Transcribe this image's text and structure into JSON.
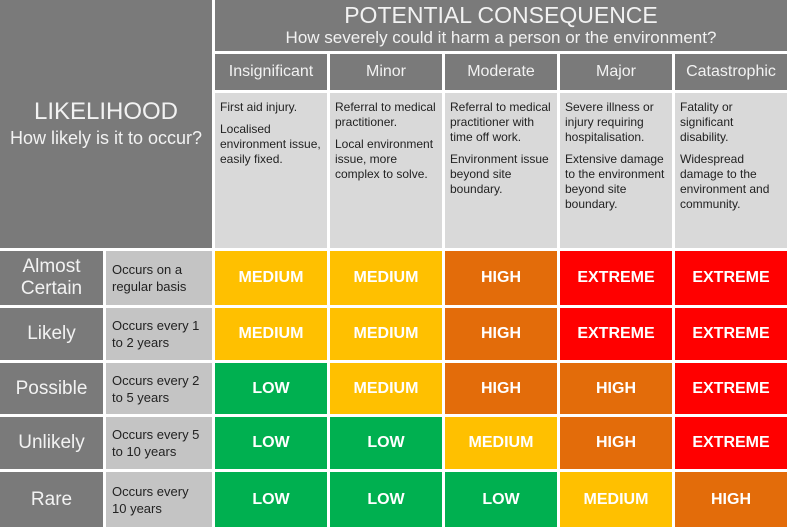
{
  "likelihood_header": {
    "title": "LIKELIHOOD",
    "subtitle": "How likely is it to occur?"
  },
  "consequence_header": {
    "title": "POTENTIAL CONSEQUENCE",
    "subtitle": "How severely could it harm a person or the environment?"
  },
  "consequences": [
    {
      "name": "Insignificant",
      "desc": [
        "First aid injury.",
        "Localised environment issue, easily fixed."
      ]
    },
    {
      "name": "Minor",
      "desc": [
        "Referral to medical practitioner.",
        "Local environment issue, more complex to solve."
      ]
    },
    {
      "name": "Moderate",
      "desc": [
        "Referral to medical practitioner with time off work.",
        "Environment issue beyond site boundary."
      ]
    },
    {
      "name": "Major",
      "desc": [
        "Severe illness or injury requiring hospitalisation.",
        "Extensive damage to the environment beyond site boundary."
      ]
    },
    {
      "name": "Catastrophic",
      "desc": [
        "Fatality or significant disability.",
        "Widespread damage to the environment and community."
      ]
    }
  ],
  "likelihoods": [
    {
      "name": "Almost Certain",
      "desc": "Occurs on a regular basis",
      "ratings": [
        "MEDIUM",
        "MEDIUM",
        "HIGH",
        "EXTREME",
        "EXTREME"
      ]
    },
    {
      "name": "Likely",
      "desc": "Occurs every 1 to 2 years",
      "ratings": [
        "MEDIUM",
        "MEDIUM",
        "HIGH",
        "EXTREME",
        "EXTREME"
      ]
    },
    {
      "name": "Possible",
      "desc": "Occurs every 2 to 5 years",
      "ratings": [
        "LOW",
        "MEDIUM",
        "HIGH",
        "HIGH",
        "EXTREME"
      ]
    },
    {
      "name": "Unlikely",
      "desc": "Occurs every 5 to 10 years",
      "ratings": [
        "LOW",
        "LOW",
        "MEDIUM",
        "HIGH",
        "EXTREME"
      ]
    },
    {
      "name": "Rare",
      "desc": "Occurs every 10 years",
      "ratings": [
        "LOW",
        "LOW",
        "LOW",
        "MEDIUM",
        "HIGH"
      ]
    }
  ],
  "colors": {
    "LOW": "#00b050",
    "MEDIUM": "#ffc000",
    "HIGH": "#e36c0a",
    "EXTREME": "#ff0000"
  }
}
